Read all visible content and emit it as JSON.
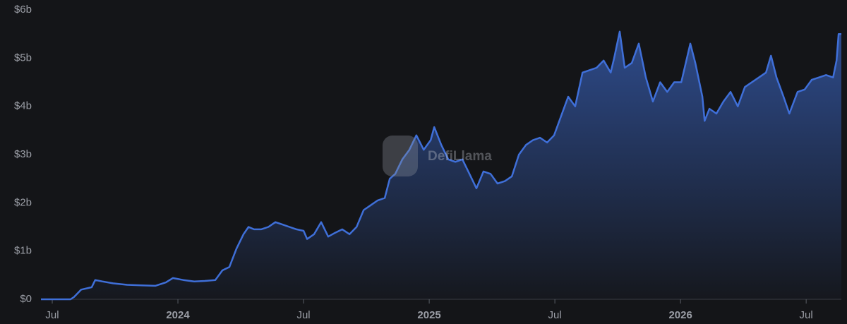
{
  "chart_data": {
    "type": "area",
    "watermark": "DefiLlama",
    "x": [
      2023.455,
      2023.573,
      2023.587,
      2023.615,
      2023.657,
      2023.671,
      2023.699,
      2023.742,
      2023.798,
      2023.854,
      2023.91,
      2023.952,
      2023.98,
      2024.022,
      2024.065,
      2024.107,
      2024.149,
      2024.177,
      2024.205,
      2024.233,
      2024.261,
      2024.281,
      2024.303,
      2024.331,
      2024.36,
      2024.388,
      2024.416,
      2024.444,
      2024.472,
      2024.5,
      2024.514,
      2024.542,
      2024.57,
      2024.598,
      2024.626,
      2024.654,
      2024.683,
      2024.711,
      2024.739,
      2024.767,
      2024.795,
      2024.823,
      2024.843,
      2024.865,
      2024.893,
      2024.921,
      2024.949,
      2024.978,
      2025.006,
      2025.02,
      2025.048,
      2025.076,
      2025.104,
      2025.132,
      2025.16,
      2025.188,
      2025.216,
      2025.244,
      2025.272,
      2025.301,
      2025.329,
      2025.357,
      2025.385,
      2025.413,
      2025.441,
      2025.469,
      2025.497,
      2025.525,
      2025.553,
      2025.581,
      2025.61,
      2025.638,
      2025.666,
      2025.694,
      2025.722,
      2025.736,
      2025.758,
      2025.778,
      2025.806,
      2025.834,
      2025.862,
      2025.89,
      2025.919,
      2025.947,
      2025.975,
      2026.003,
      2026.039,
      2026.059,
      2026.087,
      2026.096,
      2026.115,
      2026.143,
      2026.171,
      2026.199,
      2026.228,
      2026.256,
      2026.284,
      2026.312,
      2026.34,
      2026.36,
      2026.382,
      2026.41,
      2026.433,
      2026.466,
      2026.494,
      2026.522,
      2026.551,
      2026.579,
      2026.607,
      2026.621,
      2026.629,
      2026.64
    ],
    "series": [
      {
        "color": "#3f6fd8",
        "values": [
          0,
          0,
          0.05,
          0.2,
          0.25,
          0.4,
          0.37,
          0.33,
          0.3,
          0.29,
          0.28,
          0.35,
          0.44,
          0.4,
          0.37,
          0.38,
          0.4,
          0.6,
          0.67,
          1.05,
          1.35,
          1.5,
          1.45,
          1.45,
          1.5,
          1.6,
          1.55,
          1.5,
          1.45,
          1.42,
          1.25,
          1.35,
          1.6,
          1.3,
          1.38,
          1.45,
          1.35,
          1.5,
          1.85,
          1.95,
          2.05,
          2.1,
          2.5,
          2.6,
          2.9,
          3.1,
          3.4,
          3.1,
          3.3,
          3.57,
          3.2,
          2.9,
          2.85,
          2.9,
          2.6,
          2.3,
          2.65,
          2.6,
          2.4,
          2.45,
          2.55,
          3.0,
          3.2,
          3.3,
          3.35,
          3.25,
          3.4,
          3.8,
          4.2,
          4.0,
          4.7,
          4.75,
          4.8,
          4.95,
          4.7,
          5.0,
          5.55,
          4.8,
          4.9,
          5.3,
          4.6,
          4.1,
          4.5,
          4.3,
          4.5,
          4.5,
          5.3,
          4.9,
          4.2,
          3.7,
          3.95,
          3.85,
          4.1,
          4.3,
          4.0,
          4.4,
          4.5,
          4.6,
          4.7,
          5.05,
          4.6,
          4.2,
          3.85,
          4.3,
          4.35,
          4.55,
          4.6,
          4.65,
          4.6,
          4.95,
          5.5,
          5.5
        ]
      }
    ],
    "xlim": [
      2023.455,
      2026.64
    ],
    "xticks": [
      {
        "value": 2023.5,
        "label": "Jul"
      },
      {
        "value": 2024,
        "label": "2024"
      },
      {
        "value": 2024.5,
        "label": "Jul"
      },
      {
        "value": 2025,
        "label": "2025"
      },
      {
        "value": 2025.5,
        "label": "Jul"
      },
      {
        "value": 2026,
        "label": "2026"
      },
      {
        "value": 2026.5,
        "label": "Jul"
      }
    ],
    "ylim": [
      0,
      6
    ],
    "yticks": [
      {
        "value": 0,
        "label": "$0"
      },
      {
        "value": 1,
        "label": "$1b"
      },
      {
        "value": 2,
        "label": "$2b"
      },
      {
        "value": 3,
        "label": "$3b"
      },
      {
        "value": 4,
        "label": "$4b"
      },
      {
        "value": 5,
        "label": "$5b"
      },
      {
        "value": 6,
        "label": "$6b"
      }
    ],
    "grid": false
  }
}
